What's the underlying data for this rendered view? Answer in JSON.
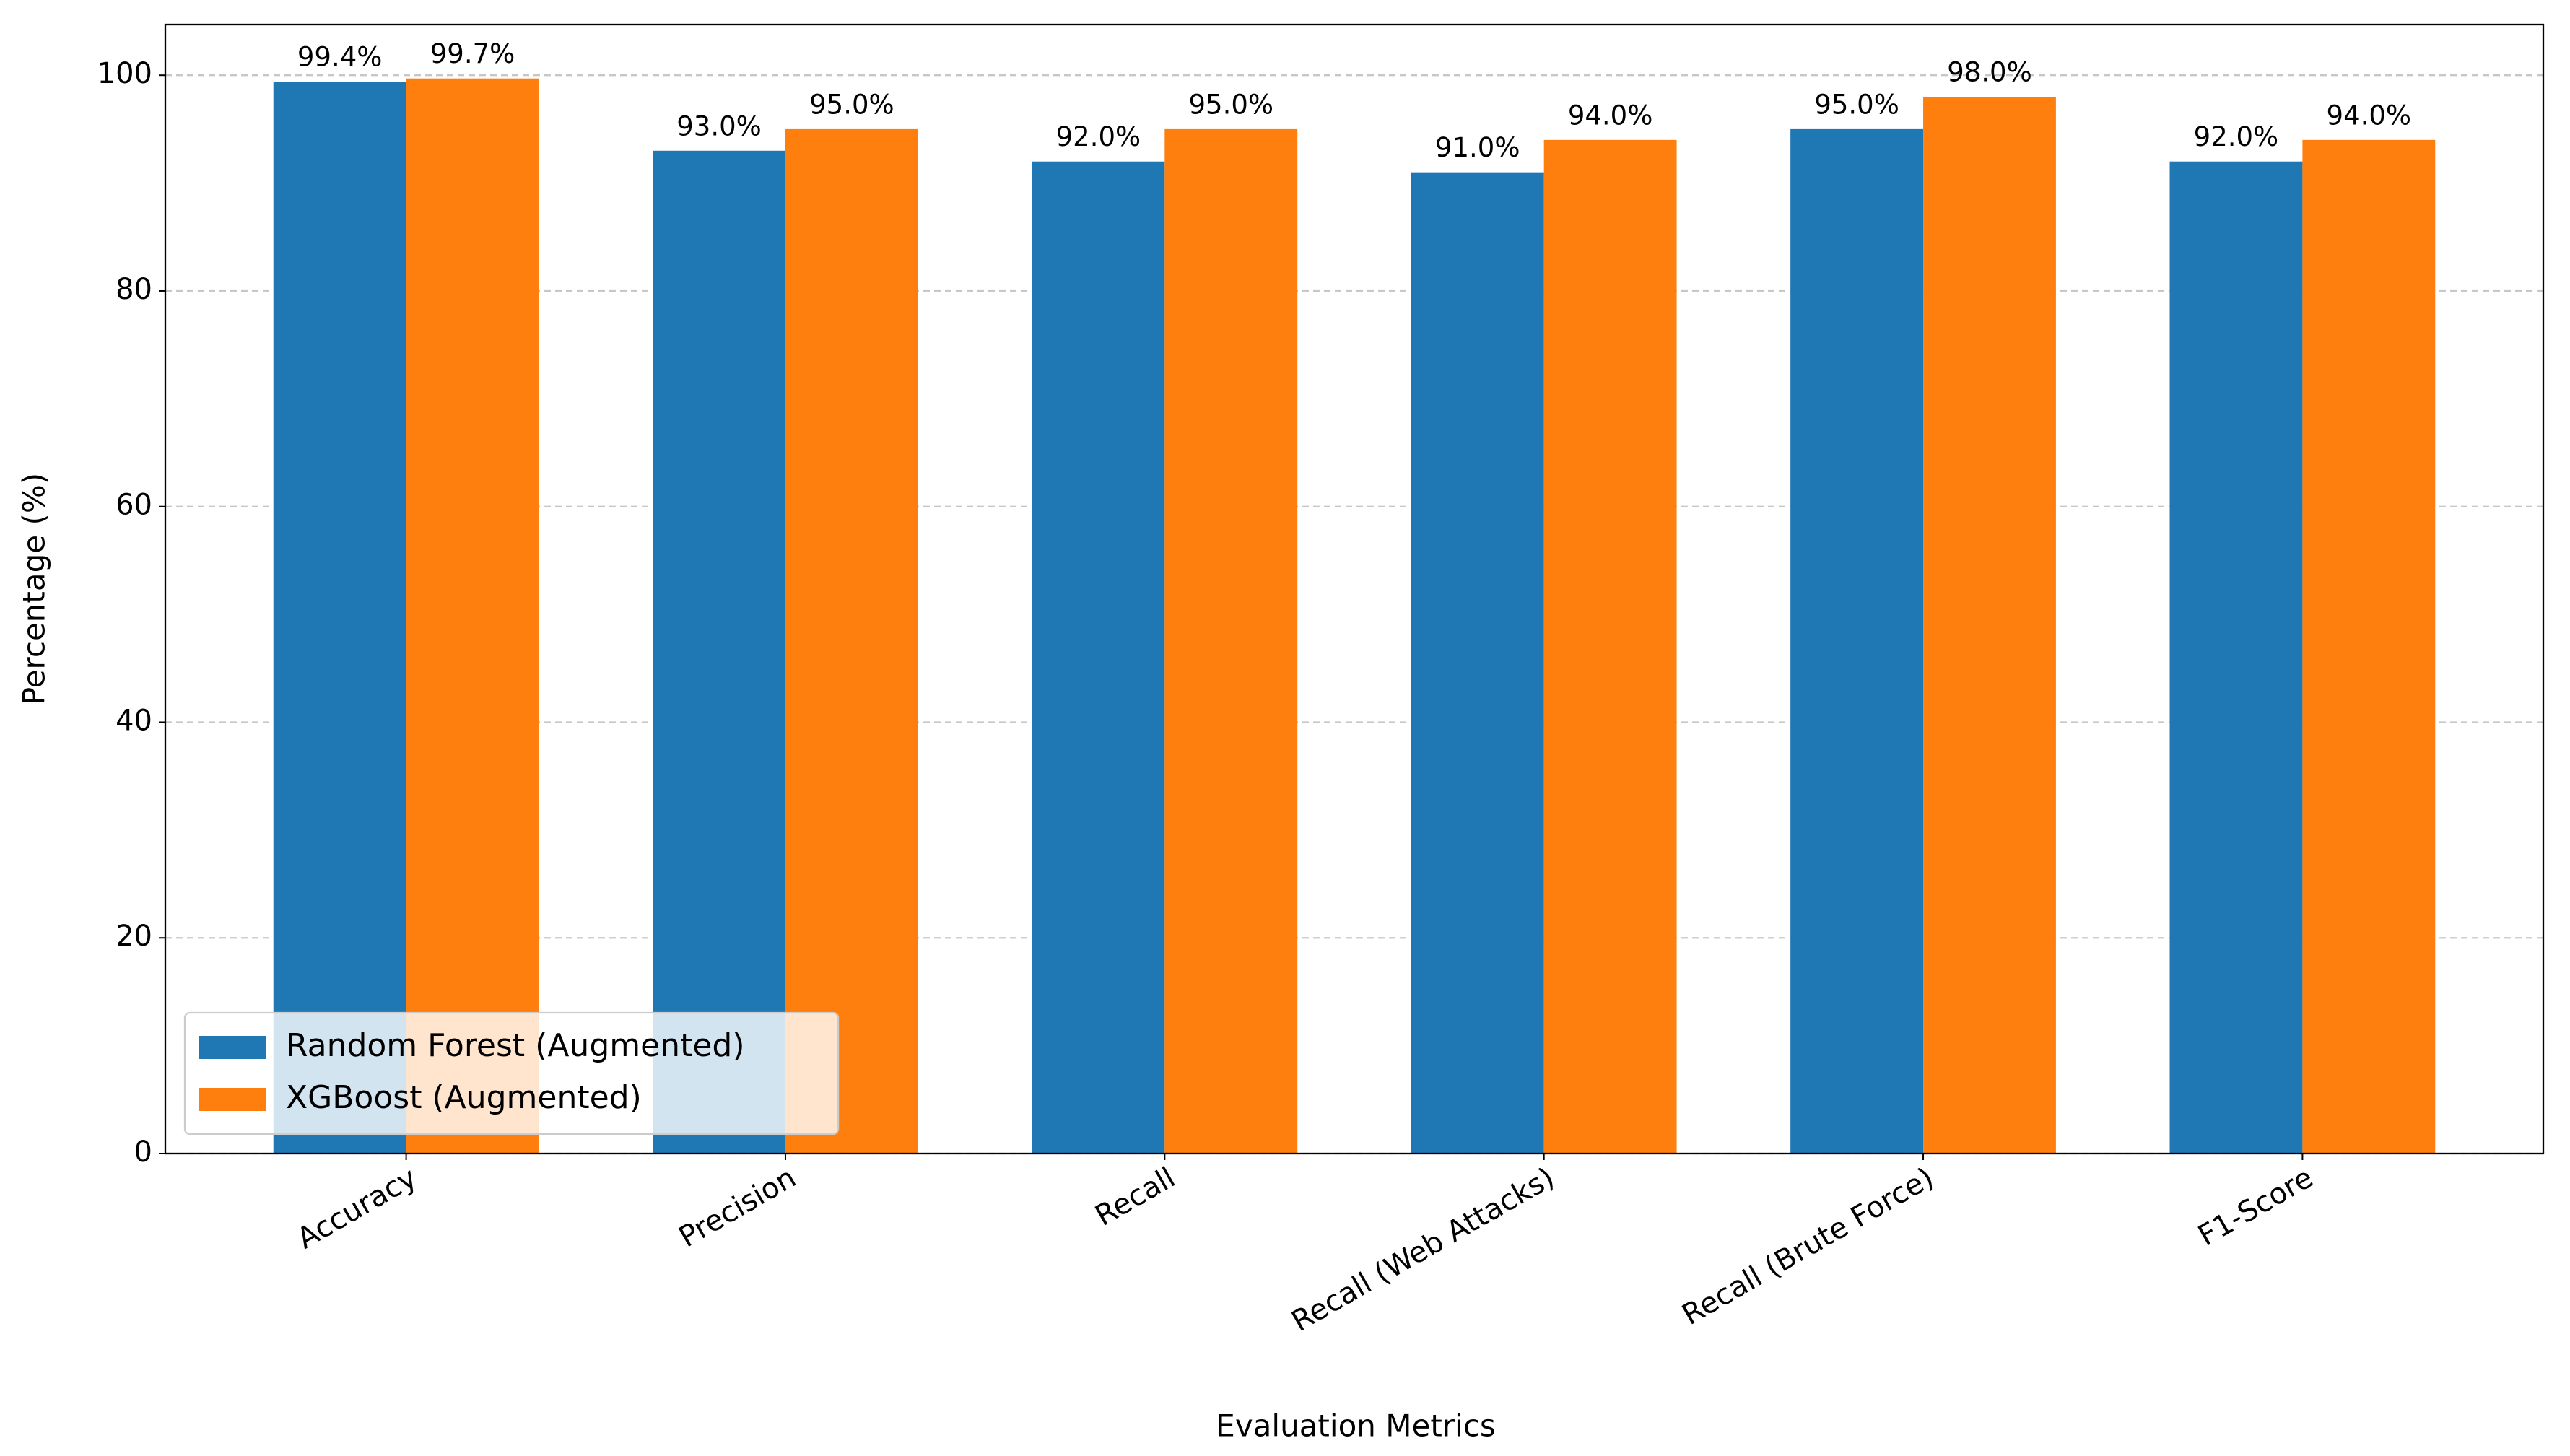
{
  "chart_data": {
    "type": "bar",
    "x_label": "Evaluation Metrics",
    "y_label": "Percentage (%)",
    "categories": [
      "Accuracy",
      "Precision",
      "Recall",
      "Recall (Web Attacks)",
      "Recall (Brute Force)",
      "F1-Score"
    ],
    "series": [
      {
        "name": "Random Forest (Augmented)",
        "color": "#1f77b4",
        "values": [
          99.4,
          93.0,
          92.0,
          91.0,
          95.0,
          92.0
        ],
        "value_labels": [
          "99.4%",
          "93.0%",
          "92.0%",
          "91.0%",
          "95.0%",
          "92.0%"
        ]
      },
      {
        "name": "XGBoost (Augmented)",
        "color": "#ff7f0e",
        "values": [
          99.7,
          95.0,
          95.0,
          94.0,
          98.0,
          94.0
        ],
        "value_labels": [
          "99.7%",
          "95.0%",
          "95.0%",
          "94.0%",
          "98.0%",
          "94.0%"
        ]
      }
    ],
    "ylim": [
      0,
      104.7
    ],
    "yticks": [
      0,
      20,
      40,
      60,
      80,
      100
    ],
    "grid": true,
    "legend": "lower left"
  }
}
